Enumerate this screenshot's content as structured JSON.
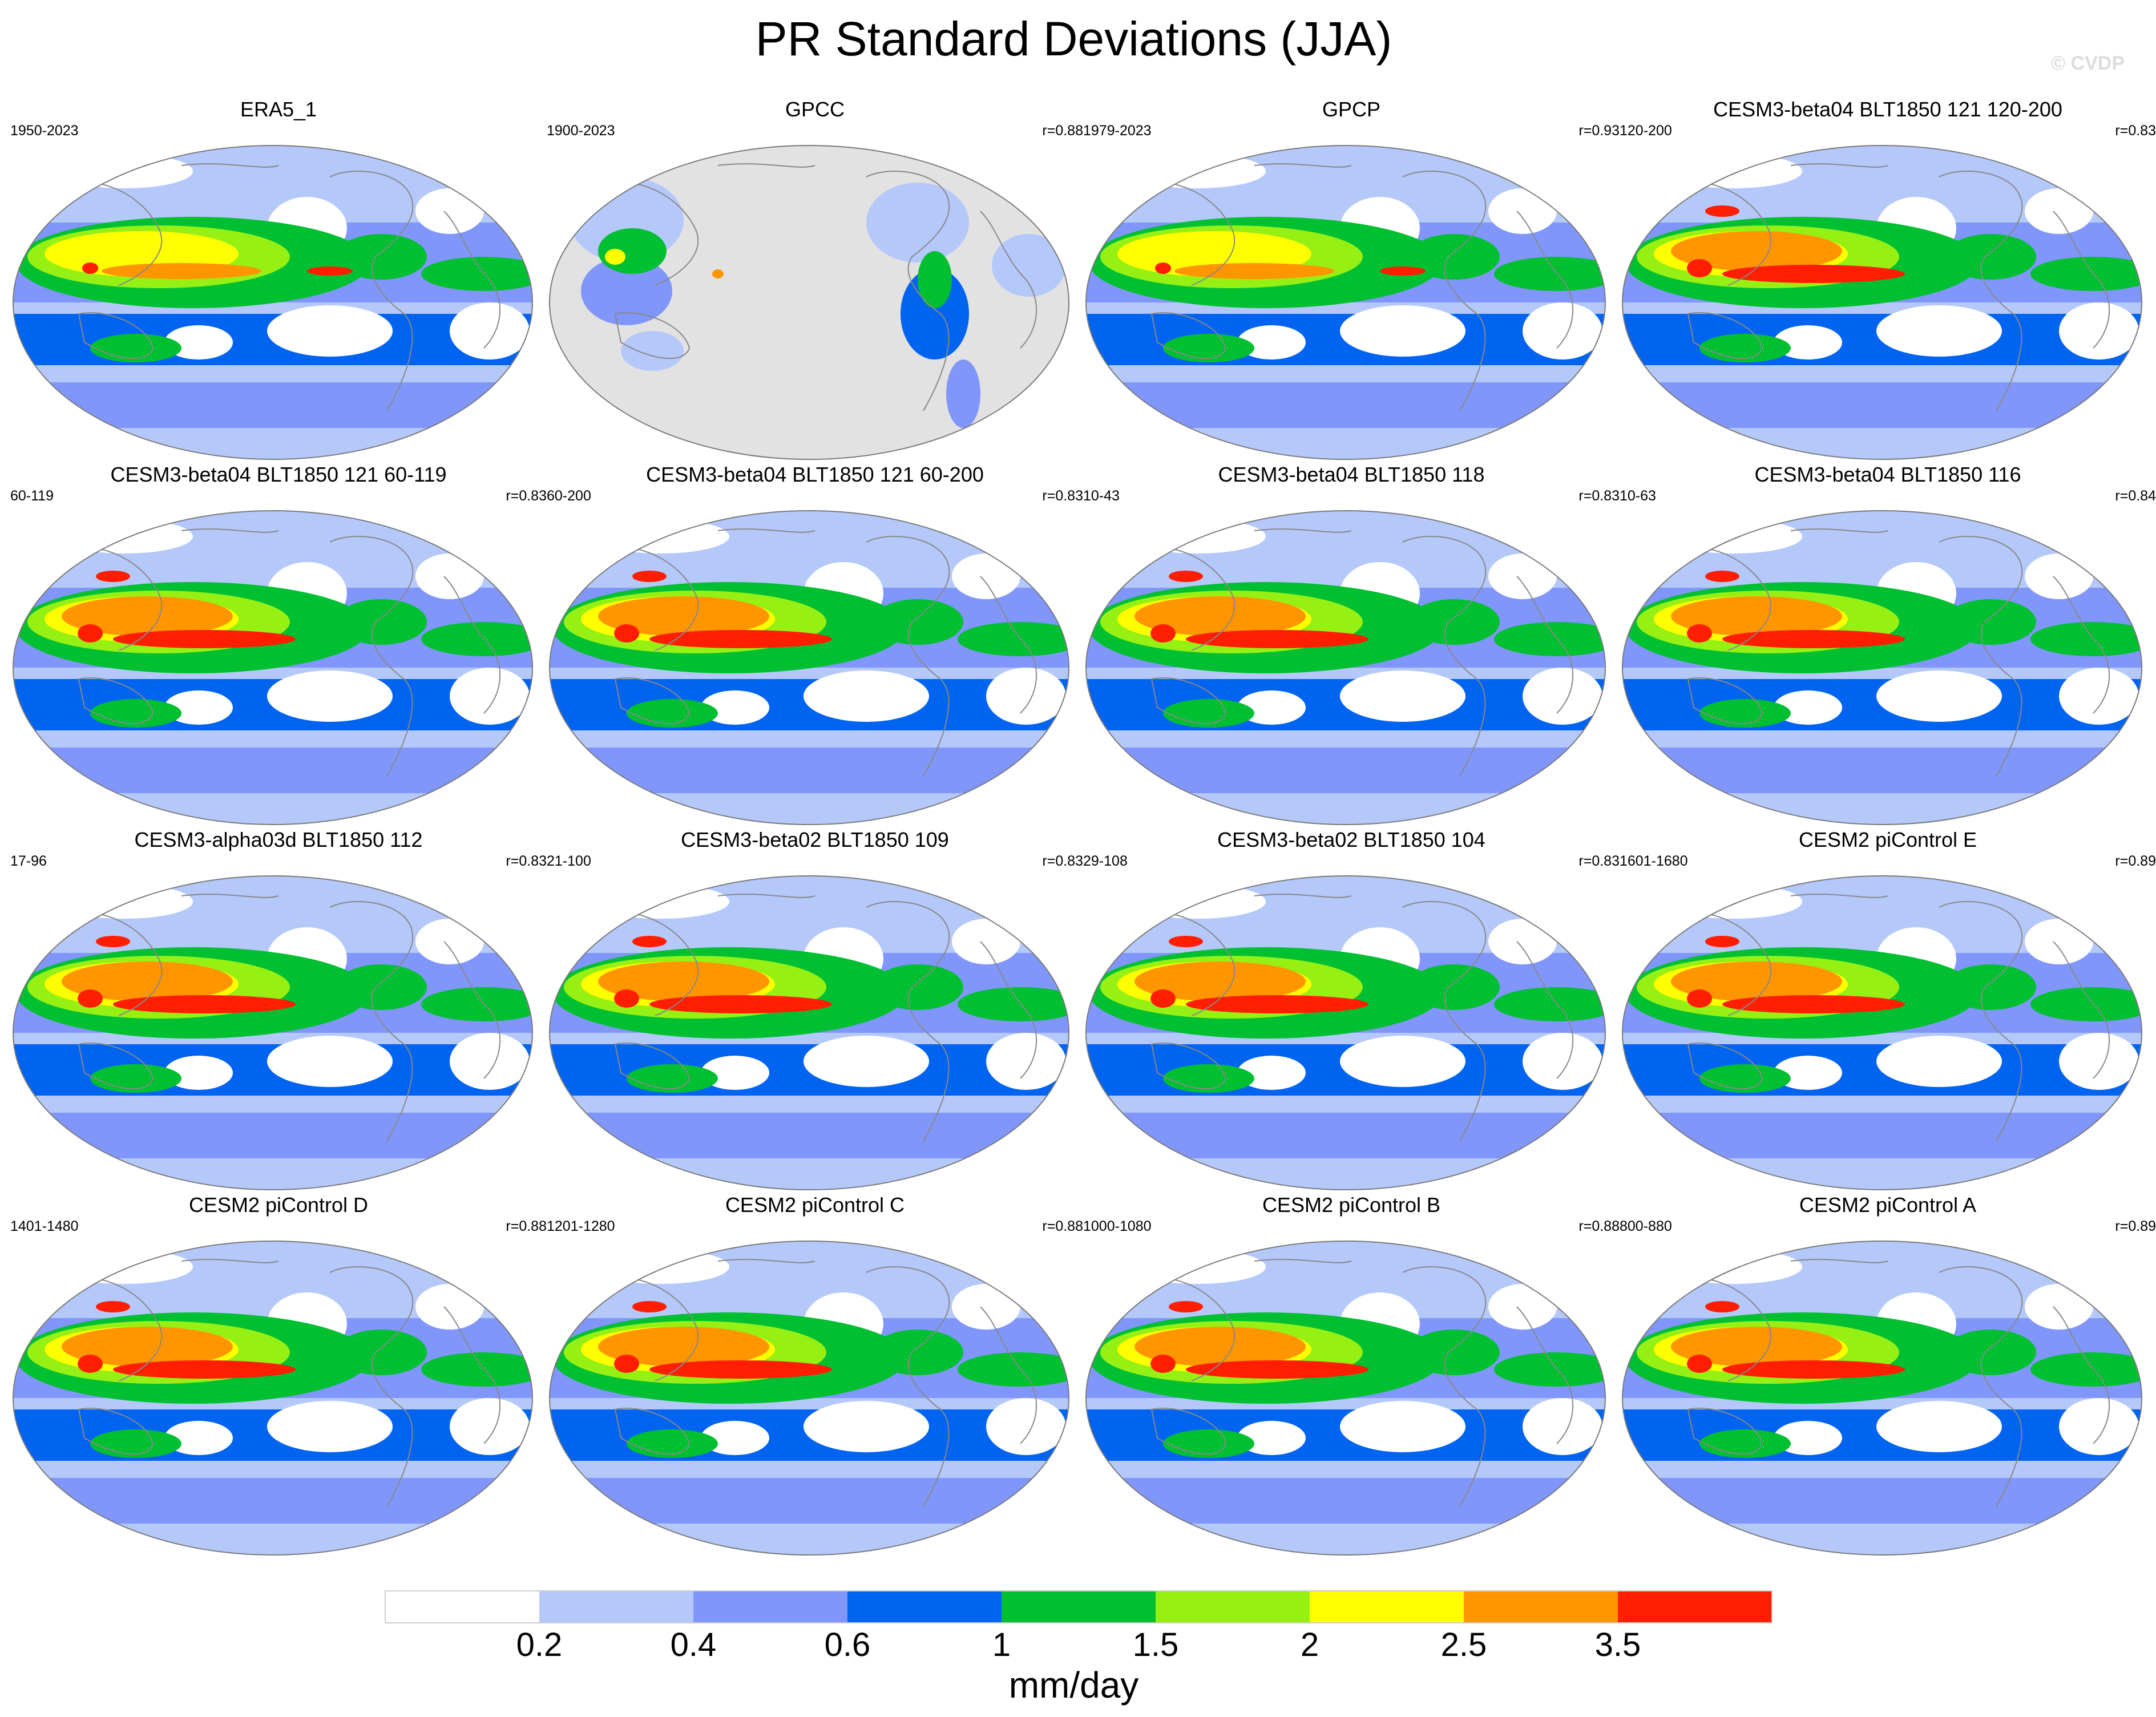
{
  "figure": {
    "title": "PR Standard Deviations (JJA)",
    "watermark": "© CVDP"
  },
  "panels": [
    {
      "title": "ERA5_1",
      "period": "1950-2023",
      "r": "",
      "style": "obs"
    },
    {
      "title": "GPCC",
      "period": "1900-2023",
      "r": "r=0.88",
      "style": "land"
    },
    {
      "title": "GPCP",
      "period": "1979-2023",
      "r": "r=0.93",
      "style": "obs"
    },
    {
      "title": "CESM3-beta04 BLT1850 121 120-200",
      "period": "120-200",
      "r": "r=0.83",
      "style": "model"
    },
    {
      "title": "CESM3-beta04 BLT1850 121 60-119",
      "period": "60-119",
      "r": "r=0.83",
      "style": "model"
    },
    {
      "title": "CESM3-beta04 BLT1850 121 60-200",
      "period": "60-200",
      "r": "r=0.83",
      "style": "model"
    },
    {
      "title": "CESM3-beta04 BLT1850 118",
      "period": "10-43",
      "r": "r=0.83",
      "style": "model"
    },
    {
      "title": "CESM3-beta04 BLT1850 116",
      "period": "10-63",
      "r": "r=0.84",
      "style": "model"
    },
    {
      "title": "CESM3-alpha03d BLT1850 112",
      "period": "17-96",
      "r": "r=0.83",
      "style": "model"
    },
    {
      "title": "CESM3-beta02 BLT1850 109",
      "period": "21-100",
      "r": "r=0.83",
      "style": "model"
    },
    {
      "title": "CESM3-beta02 BLT1850 104",
      "period": "29-108",
      "r": "r=0.83",
      "style": "model"
    },
    {
      "title": "CESM2 piControl E",
      "period": "1601-1680",
      "r": "r=0.89",
      "style": "model"
    },
    {
      "title": "CESM2 piControl D",
      "period": "1401-1480",
      "r": "r=0.88",
      "style": "model"
    },
    {
      "title": "CESM2 piControl C",
      "period": "1201-1280",
      "r": "r=0.88",
      "style": "model"
    },
    {
      "title": "CESM2 piControl B",
      "period": "1000-1080",
      "r": "r=0.88",
      "style": "model"
    },
    {
      "title": "CESM2 piControl A",
      "period": "800-880",
      "r": "r=0.89",
      "style": "model"
    }
  ],
  "colorbar": {
    "units": "mm/day",
    "levels": [
      "0.2",
      "0.4",
      "0.6",
      "1",
      "1.5",
      "2",
      "2.5",
      "3.5"
    ],
    "colors": [
      "#ffffff",
      "#b4c8fa",
      "#8096fa",
      "#0064f0",
      "#00c032",
      "#96f014",
      "#ffff00",
      "#ff9600",
      "#ff1e00"
    ]
  },
  "legend_position": "bottom"
}
